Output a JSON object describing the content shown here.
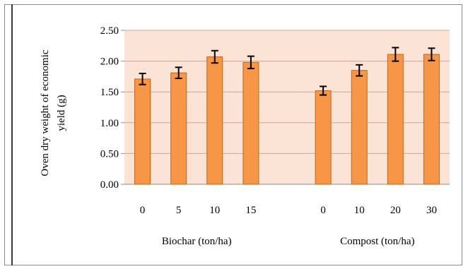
{
  "chart_data": {
    "type": "bar",
    "title": "",
    "ylabel": "Oven dry weight of economic yield (g)",
    "ylabel_lines": [
      "Oven dry weight of economic",
      "yield (g)"
    ],
    "ylim": [
      0,
      2.5
    ],
    "yticks": [
      "0.00",
      "0.50",
      "1.00",
      "1.50",
      "2.00",
      "2.50"
    ],
    "groups": [
      {
        "name": "Biochar (ton/ha)",
        "categories": [
          "0",
          "5",
          "10",
          "15"
        ],
        "values": [
          1.71,
          1.81,
          2.07,
          1.98
        ],
        "errors": [
          0.09,
          0.09,
          0.1,
          0.1
        ]
      },
      {
        "name": "Compost (ton/ha)",
        "categories": [
          "0",
          "10",
          "20",
          "30"
        ],
        "values": [
          1.52,
          1.85,
          2.11,
          2.11
        ],
        "errors": [
          0.07,
          0.09,
          0.11,
          0.1
        ]
      }
    ],
    "grid": true,
    "legend": "none",
    "colors": {
      "bar_fill": "#f79646",
      "bar_stroke": "#c0651f",
      "plot_background": "#fbe4d5",
      "gridline": "#c8a898",
      "error_bar": "#000000"
    }
  }
}
